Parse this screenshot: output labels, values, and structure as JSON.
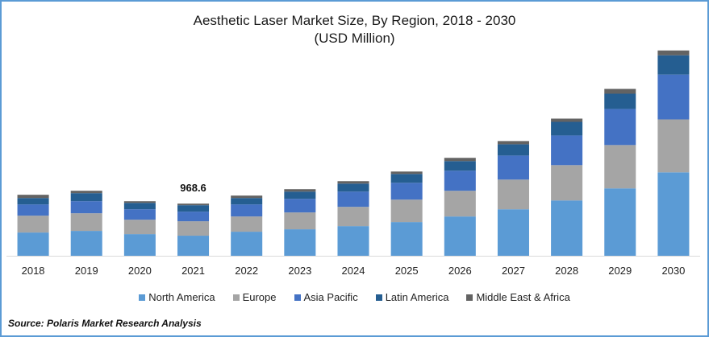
{
  "chart_data": {
    "type": "bar",
    "stacked": true,
    "title": "Aesthetic Laser Market Size, By Region, 2018 - 2030",
    "subtitle": "(USD Million)",
    "xlabel": "",
    "ylabel": "",
    "categories": [
      "2018",
      "2019",
      "2020",
      "2021",
      "2022",
      "2023",
      "2024",
      "2025",
      "2026",
      "2027",
      "2028",
      "2029",
      "2030"
    ],
    "series": [
      {
        "name": "North America",
        "color": "#5B9BD5",
        "values": [
          432,
          462,
          402,
          373,
          447,
          492,
          551,
          626,
          730,
          864,
          1028,
          1252,
          1550
        ]
      },
      {
        "name": "Europe",
        "color": "#A5A5A5",
        "values": [
          313,
          328,
          268,
          268,
          283,
          313,
          358,
          417,
          477,
          551,
          656,
          805,
          983
        ]
      },
      {
        "name": "Asia Pacific",
        "color": "#4472C4",
        "values": [
          209,
          224,
          194,
          179,
          224,
          253,
          283,
          313,
          373,
          447,
          551,
          671,
          834
        ]
      },
      {
        "name": "Latin America",
        "color": "#255E91",
        "values": [
          119,
          149,
          119,
          119,
          119,
          134,
          149,
          164,
          179,
          209,
          253,
          283,
          358
        ]
      },
      {
        "name": "Middle East & Africa",
        "color": "#636363",
        "values": [
          60,
          45,
          30,
          30,
          45,
          45,
          45,
          45,
          60,
          60,
          60,
          89,
          89
        ]
      }
    ],
    "annotations": [
      {
        "category": "2021",
        "text": "968.6"
      }
    ],
    "ylim": [
      0,
      3900
    ],
    "grid": false,
    "legend": "bottom"
  },
  "source": "Source: Polaris  Market Research Analysis"
}
